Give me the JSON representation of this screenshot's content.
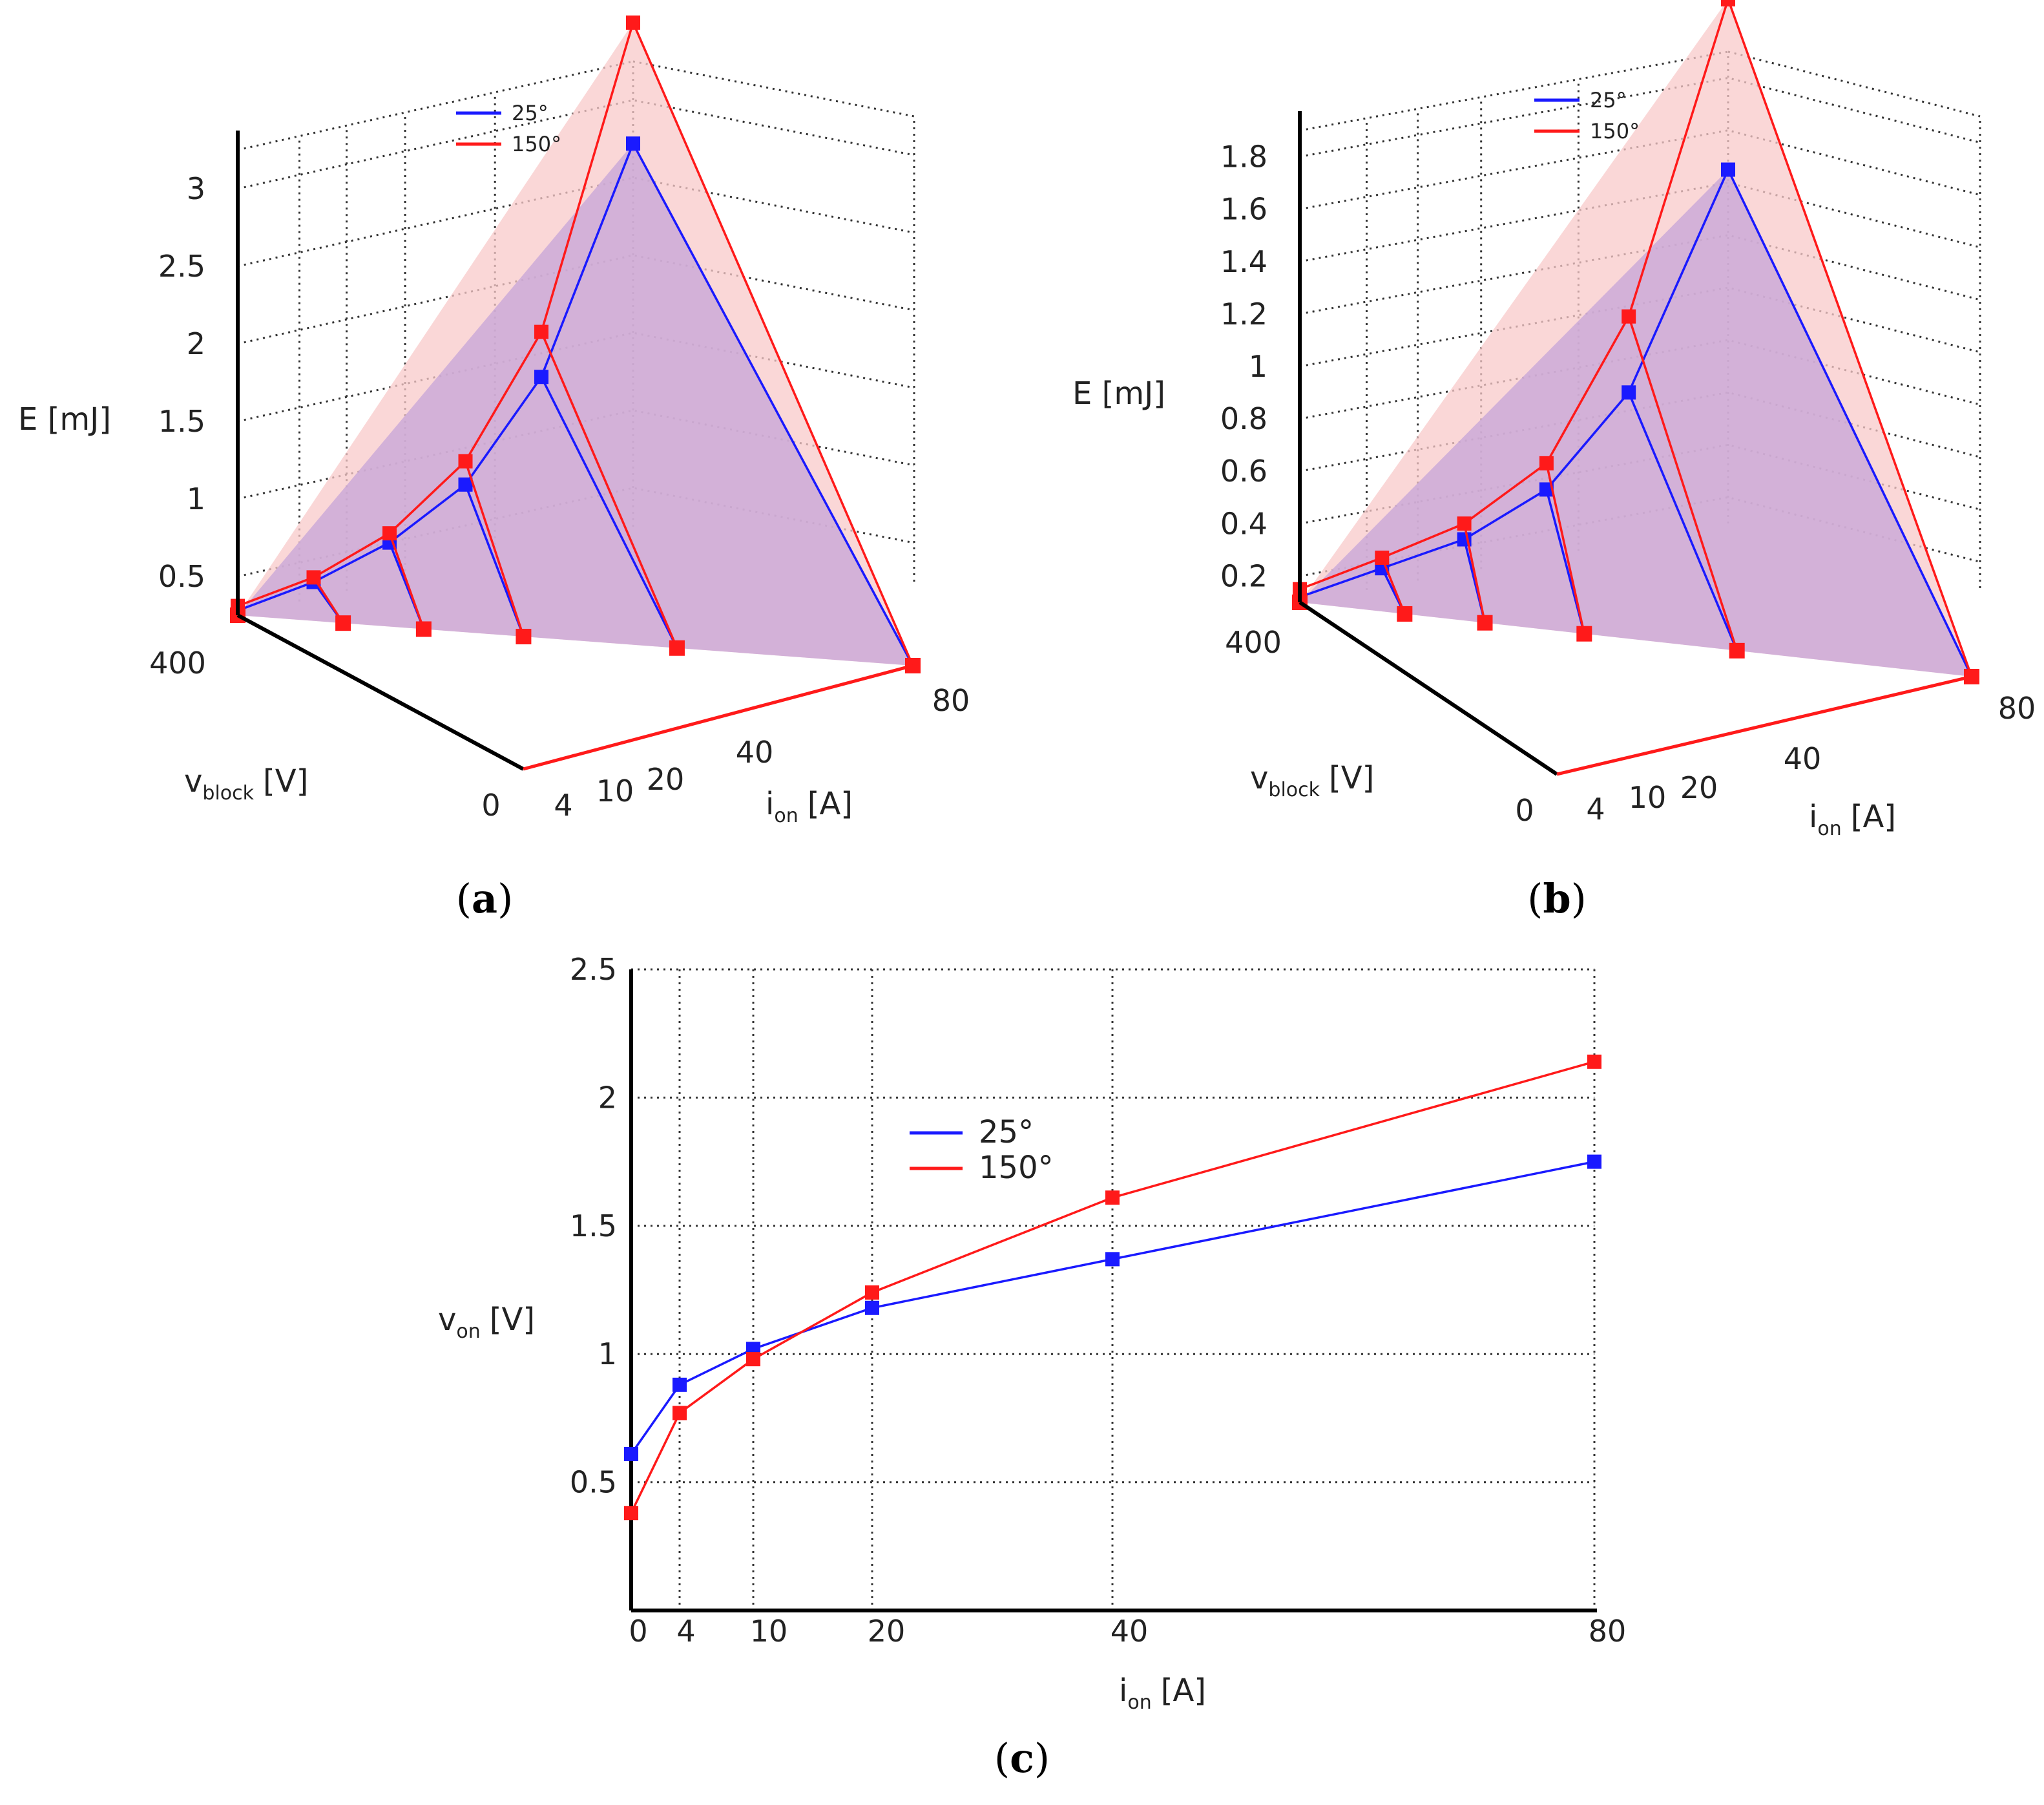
{
  "series_colors": {
    "s25": "#1a1aff",
    "s150": "#ff1a1a"
  },
  "fill_colors": {
    "s25": "#c9a8d8",
    "s150": "#f8c9c9"
  },
  "chart_data": [
    {
      "panel": "a",
      "caption_letter": "a",
      "type": "3d-line",
      "zlabel": "E [mJ]",
      "ylabel_main": "v",
      "ylabel_sub": "block",
      "ylabel_unit": "[V]",
      "xlabel_main": "i",
      "xlabel_sub": "on",
      "xlabel_unit": "[A]",
      "z_ticks": [
        "0.5",
        "1",
        "1.5",
        "2",
        "2.5",
        "3"
      ],
      "z_tick_values": [
        0.5,
        1,
        1.5,
        2,
        2.5,
        3
      ],
      "zlim": [
        0.25,
        3.25
      ],
      "x_ticks": [
        "0",
        "4",
        "10",
        "20",
        "40",
        "80"
      ],
      "x_values": [
        0,
        4,
        10,
        20,
        40,
        80
      ],
      "y_tick": "400",
      "legend": [
        "25°",
        "150°"
      ],
      "series": [
        {
          "name": "25°",
          "values": [
            0.28,
            0.35,
            0.49,
            0.75,
            1.33,
            2.72
          ]
        },
        {
          "name": "150°",
          "values": [
            0.31,
            0.38,
            0.55,
            0.9,
            1.62,
            3.5
          ]
        }
      ]
    },
    {
      "panel": "b",
      "caption_letter": "b",
      "type": "3d-line",
      "zlabel": "E [mJ]",
      "ylabel_main": "v",
      "ylabel_sub": "block",
      "ylabel_unit": "[V]",
      "xlabel_main": "i",
      "xlabel_sub": "on",
      "xlabel_unit": "[A]",
      "z_ticks": [
        "0.2",
        "0.4",
        "0.6",
        "0.8",
        "1",
        "1.2",
        "1.4",
        "1.6",
        "1.8"
      ],
      "z_tick_values": [
        0.2,
        0.4,
        0.6,
        0.8,
        1,
        1.2,
        1.4,
        1.6,
        1.8
      ],
      "zlim": [
        0.1,
        1.9
      ],
      "x_ticks": [
        "0",
        "4",
        "10",
        "20",
        "40",
        "80"
      ],
      "x_values": [
        0,
        4,
        10,
        20,
        40,
        80
      ],
      "y_tick": "400",
      "legend": [
        "25°",
        "150°"
      ],
      "series": [
        {
          "name": "25°",
          "values": [
            0.12,
            0.17,
            0.22,
            0.35,
            0.66,
            1.45
          ]
        },
        {
          "name": "150°",
          "values": [
            0.15,
            0.21,
            0.28,
            0.45,
            0.95,
            2.1
          ]
        }
      ]
    },
    {
      "panel": "c",
      "caption_letter": "c",
      "type": "line",
      "ylabel_main": "v",
      "ylabel_sub": "on",
      "ylabel_unit": "[V]",
      "xlabel_main": "i",
      "xlabel_sub": "on",
      "xlabel_unit": "[A]",
      "categories": [
        "0",
        "4",
        "10",
        "20",
        "40",
        "80"
      ],
      "x_values": [
        0,
        4,
        10,
        20,
        40,
        80
      ],
      "y_ticks": [
        "0.5",
        "1",
        "1.5",
        "2",
        "2.5"
      ],
      "y_tick_values": [
        0.5,
        1,
        1.5,
        2,
        2.5
      ],
      "ylim": [
        0,
        2.5
      ],
      "legend": [
        "25°",
        "150°"
      ],
      "series": [
        {
          "name": "25°",
          "values": [
            0.61,
            0.88,
            1.02,
            1.18,
            1.37,
            1.75
          ]
        },
        {
          "name": "150°",
          "values": [
            0.38,
            0.77,
            0.98,
            1.24,
            1.61,
            2.14
          ]
        }
      ]
    }
  ]
}
